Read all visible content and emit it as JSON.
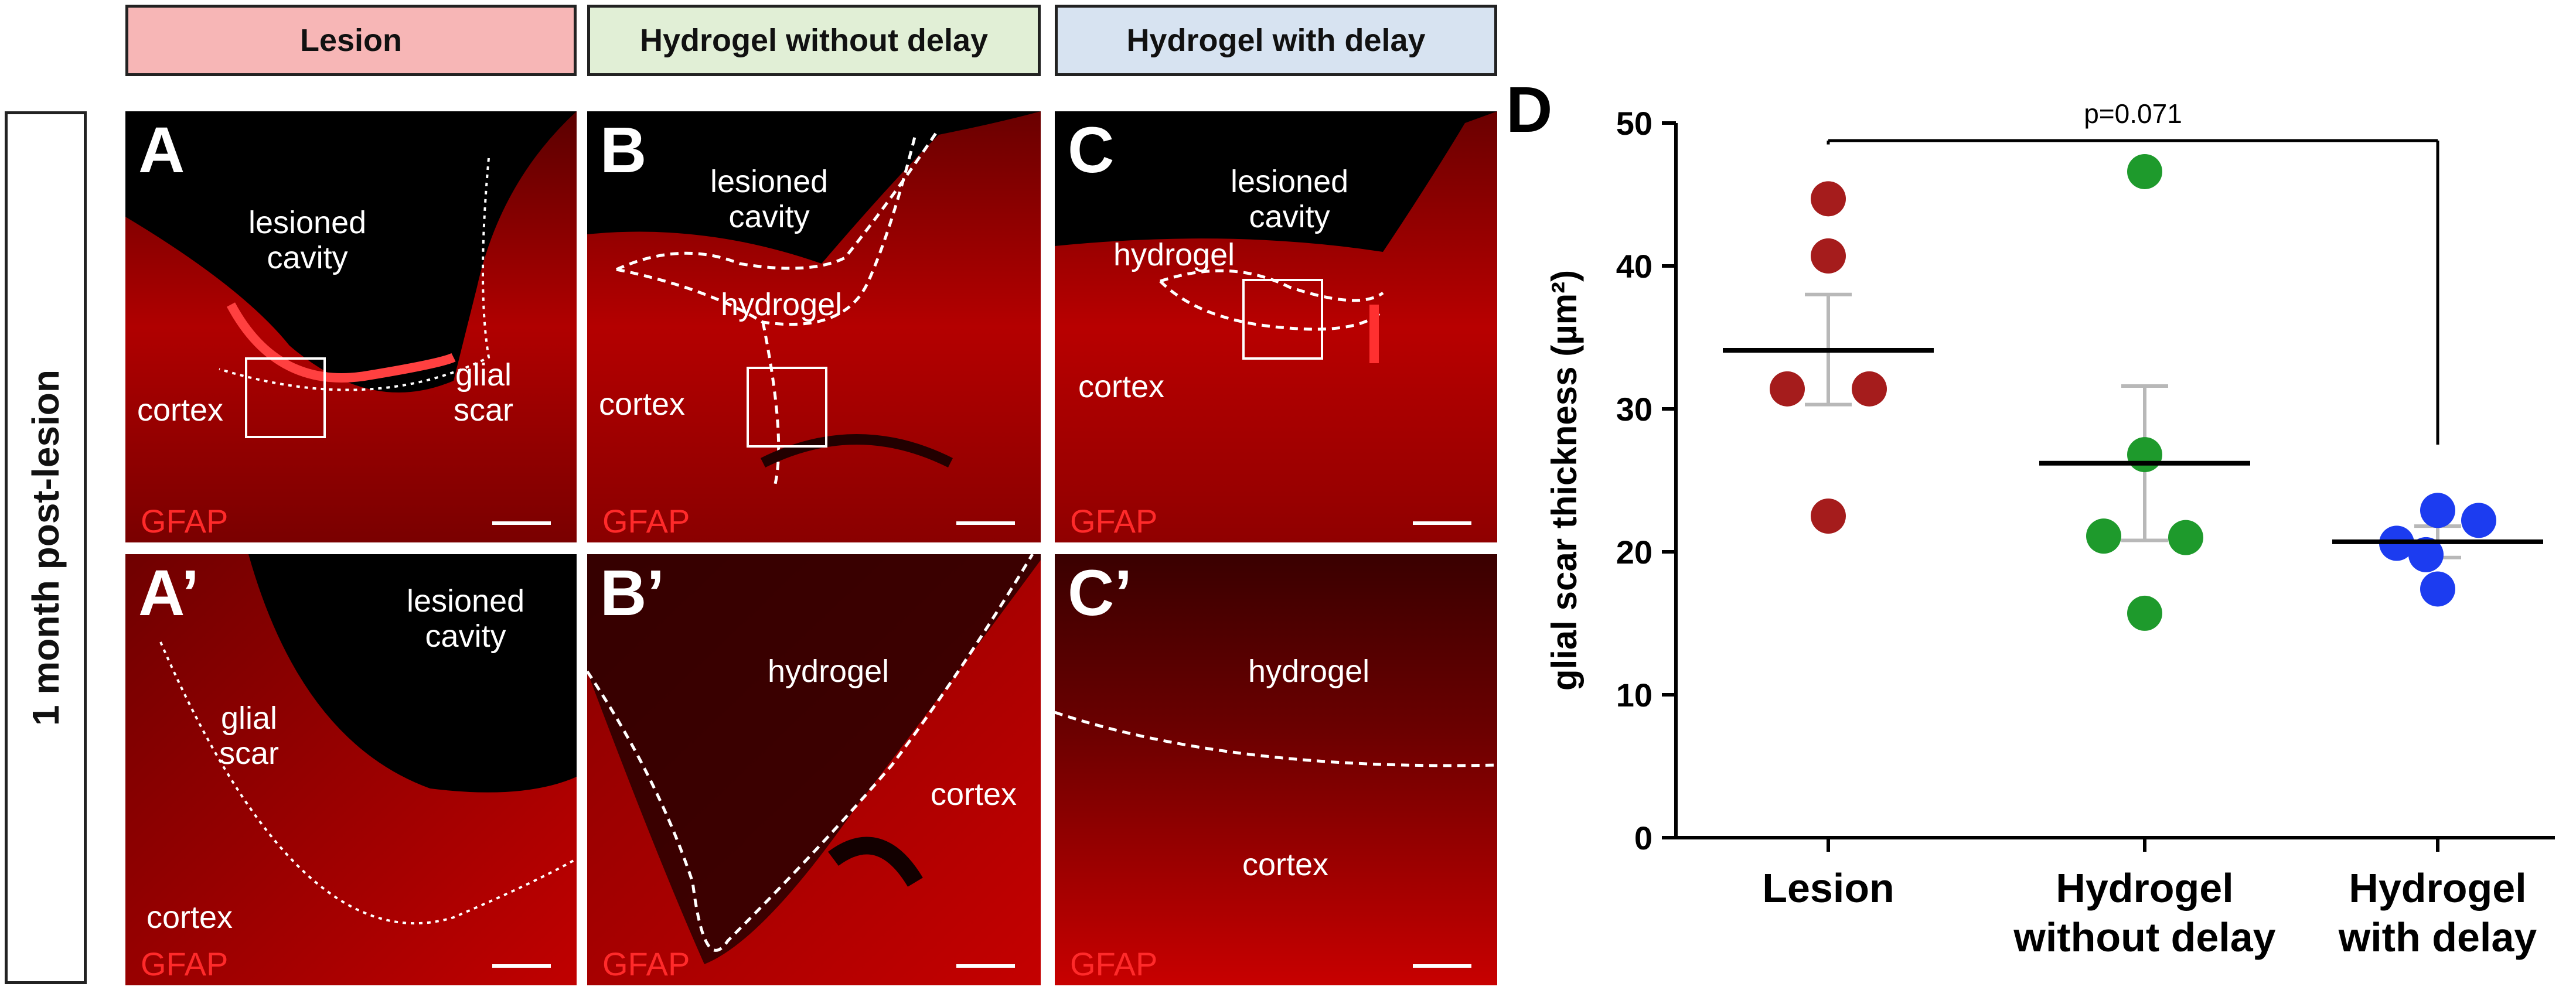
{
  "headers": [
    {
      "label": "Lesion",
      "color": "#f7b6b6"
    },
    {
      "label": "Hydrogel without delay",
      "color": "#e1efd6"
    },
    {
      "label": "Hydrogel with delay",
      "color": "#d7e3f1"
    }
  ],
  "side_label": "1 month post-lesion",
  "panels": {
    "A": {
      "letter": "A",
      "stain": "GFAP",
      "labels": [
        "lesioned\ncavity",
        "glial\nscar",
        "cortex"
      ]
    },
    "B": {
      "letter": "B",
      "stain": "GFAP",
      "labels": [
        "lesioned\ncavity",
        "hydrogel",
        "cortex"
      ]
    },
    "C": {
      "letter": "C",
      "stain": "GFAP",
      "labels": [
        "lesioned\ncavity",
        "hydrogel",
        "cortex"
      ]
    },
    "A2": {
      "letter": "A’",
      "stain": "GFAP",
      "labels": [
        "lesioned\ncavity",
        "glial\nscar",
        "cortex"
      ]
    },
    "B2": {
      "letter": "B’",
      "stain": "GFAP",
      "labels": [
        "hydrogel",
        "cortex"
      ]
    },
    "C2": {
      "letter": "C’",
      "stain": "GFAP",
      "labels": [
        "hydrogel",
        "cortex"
      ]
    }
  },
  "chart_data": {
    "type": "scatter",
    "panel_letter": "D",
    "categories": [
      "Lesion",
      "Hydrogel\nwithout delay",
      "Hydrogel\nwith delay"
    ],
    "ylabel": "glial scar thickness (µm²)",
    "ylim": [
      0,
      50
    ],
    "yticks": [
      0,
      10,
      20,
      30,
      40,
      50
    ],
    "series": [
      {
        "category": "Lesion",
        "color": "#a51c1c",
        "points": [
          44.7,
          40.7,
          31.4,
          31.4,
          22.5
        ],
        "mean": 34.1,
        "sem_low": 30.3,
        "sem_high": 38.0
      },
      {
        "category": "Hydrogel\nwithout delay",
        "color": "#1e9a2c",
        "points": [
          46.6,
          26.8,
          21.1,
          21.0,
          15.7
        ],
        "mean": 26.2,
        "sem_low": 20.8,
        "sem_high": 31.6
      },
      {
        "category": "Hydrogel\nwith delay",
        "color": "#1c3cf0",
        "points": [
          22.9,
          22.2,
          20.6,
          19.8,
          17.4
        ],
        "mean": 20.7,
        "sem_low": 19.6,
        "sem_high": 21.8
      }
    ],
    "annotation": {
      "text": "p=0.071",
      "from": "Lesion",
      "to": "Hydrogel\nwith delay"
    },
    "grid": false
  }
}
